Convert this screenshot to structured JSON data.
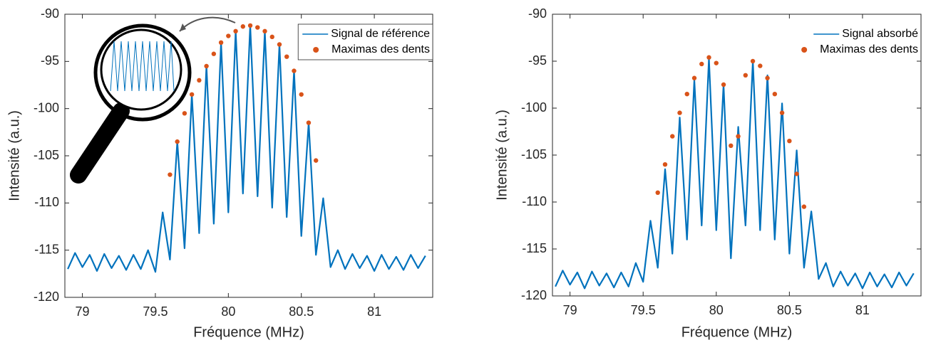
{
  "chart_data": [
    {
      "type": "line",
      "xlabel": "Fréquence (MHz)",
      "ylabel": "Intensité (a.u.)",
      "xlim": [
        78.88,
        81.4
      ],
      "ylim": [
        -120,
        -90
      ],
      "xticks": [
        79,
        79.5,
        80,
        80.5,
        81
      ],
      "yticks": [
        -120,
        -115,
        -110,
        -105,
        -100,
        -95,
        -90
      ],
      "legend": "upper right",
      "legend_frame": true,
      "series": [
        {
          "name": "Signal de référence",
          "color": "#0072bd",
          "style": "line",
          "x": [
            78.9,
            78.95,
            79.0,
            79.05,
            79.1,
            79.15,
            79.2,
            79.25,
            79.3,
            79.35,
            79.4,
            79.45,
            79.5,
            79.55,
            79.6,
            79.65,
            79.7,
            79.75,
            79.8,
            79.85,
            79.9,
            79.95,
            80.0,
            80.05,
            80.1,
            80.15,
            80.2,
            80.25,
            80.3,
            80.35,
            80.4,
            80.45,
            80.5,
            80.55,
            80.6,
            80.65,
            80.7,
            80.75,
            80.8,
            80.85,
            80.9,
            80.95,
            81.0,
            81.05,
            81.1,
            81.15,
            81.2,
            81.25,
            81.3,
            81.35
          ],
          "values": [
            -117.0,
            -115.3,
            -116.8,
            -115.5,
            -117.2,
            -115.4,
            -116.9,
            -115.6,
            -117.1,
            -115.5,
            -117.0,
            -115.0,
            -117.3,
            -111.0,
            -116.0,
            -103.5,
            -114.8,
            -98.5,
            -113.2,
            -95.5,
            -112.2,
            -93.0,
            -111.0,
            -91.8,
            -109.0,
            -91.2,
            -109.3,
            -91.8,
            -110.5,
            -93.2,
            -111.5,
            -96.0,
            -113.5,
            -101.5,
            -115.5,
            -109.5,
            -116.8,
            -115.0,
            -117.0,
            -115.4,
            -116.9,
            -115.6,
            -117.2,
            -115.5,
            -117.0,
            -115.7,
            -117.1,
            -115.5,
            -116.9,
            -115.6
          ]
        },
        {
          "name": "Maximas des dents",
          "color": "#d95319",
          "style": "markers",
          "x": [
            79.6,
            79.65,
            79.7,
            79.75,
            79.8,
            79.85,
            79.9,
            79.95,
            80.0,
            80.05,
            80.1,
            80.15,
            80.2,
            80.25,
            80.3,
            80.35,
            80.4,
            80.45,
            80.5,
            80.55,
            80.6
          ],
          "values": [
            -107,
            -103.5,
            -100.5,
            -98.5,
            -97,
            -95.5,
            -94.2,
            -93,
            -92.3,
            -91.8,
            -91.3,
            -91.2,
            -91.4,
            -91.8,
            -92.4,
            -93.2,
            -94.5,
            -96,
            -98.5,
            -101.5,
            -105.5
          ]
        }
      ]
    },
    {
      "type": "line",
      "xlabel": "Fréquence (MHz)",
      "ylabel": "Intensité (a.u.)",
      "xlim": [
        78.88,
        81.4
      ],
      "ylim": [
        -120,
        -90
      ],
      "xticks": [
        79,
        79.5,
        80,
        80.5,
        81
      ],
      "yticks": [
        -120,
        -115,
        -110,
        -105,
        -100,
        -95,
        -90
      ],
      "legend": "upper right",
      "legend_frame": false,
      "series": [
        {
          "name": "Signal absorbé",
          "color": "#0072bd",
          "style": "line",
          "x": [
            78.9,
            78.95,
            79.0,
            79.05,
            79.1,
            79.15,
            79.2,
            79.25,
            79.3,
            79.35,
            79.4,
            79.45,
            79.5,
            79.55,
            79.6,
            79.65,
            79.7,
            79.75,
            79.8,
            79.85,
            79.9,
            79.95,
            80.0,
            80.05,
            80.1,
            80.15,
            80.2,
            80.25,
            80.3,
            80.35,
            80.4,
            80.45,
            80.5,
            80.55,
            80.6,
            80.65,
            80.7,
            80.75,
            80.8,
            80.85,
            80.9,
            80.95,
            81.0,
            81.05,
            81.1,
            81.15,
            81.2,
            81.25,
            81.3,
            81.35
          ],
          "values": [
            -119.0,
            -117.3,
            -118.8,
            -117.5,
            -119.2,
            -117.4,
            -118.9,
            -117.6,
            -119.1,
            -117.5,
            -119.0,
            -116.5,
            -118.5,
            -112.0,
            -117.0,
            -106.5,
            -115.5,
            -101.0,
            -114.0,
            -97.0,
            -112.5,
            -94.7,
            -113.0,
            -97.5,
            -116.0,
            -102.0,
            -112.5,
            -95.0,
            -113.0,
            -96.5,
            -114.0,
            -99.5,
            -115.5,
            -104.5,
            -117.0,
            -111.0,
            -118.2,
            -116.5,
            -119.0,
            -117.4,
            -118.9,
            -117.6,
            -119.2,
            -117.5,
            -119.0,
            -117.7,
            -119.1,
            -117.5,
            -118.9,
            -117.6
          ]
        },
        {
          "name": "Maximas des dents",
          "color": "#d95319",
          "style": "markers",
          "x": [
            79.6,
            79.65,
            79.7,
            79.75,
            79.8,
            79.85,
            79.9,
            79.95,
            80.0,
            80.05,
            80.1,
            80.15,
            80.2,
            80.25,
            80.3,
            80.35,
            80.4,
            80.45,
            80.5,
            80.55,
            80.6
          ],
          "values": [
            -109,
            -106,
            -103,
            -100.5,
            -98.5,
            -96.8,
            -95.3,
            -94.6,
            -95.2,
            -97.5,
            -104,
            -103,
            -96.5,
            -95.0,
            -95.5,
            -96.8,
            -98.5,
            -100.5,
            -103.5,
            -107,
            -110.5
          ]
        }
      ]
    }
  ]
}
